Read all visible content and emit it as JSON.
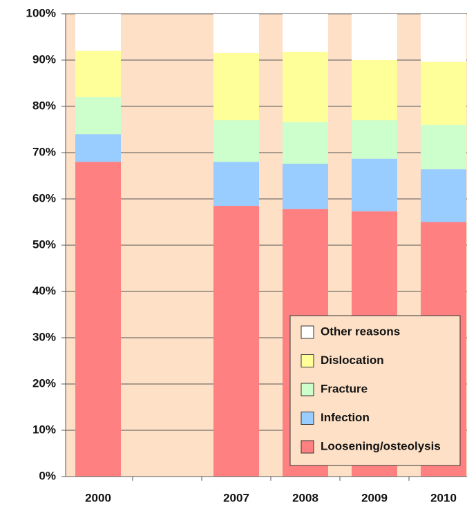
{
  "chart_data": {
    "type": "stacked_bar",
    "categories": [
      "2000",
      null,
      "2007",
      "2008",
      "2009",
      "2010"
    ],
    "series": [
      {
        "name": "Loosening/osteolysis",
        "color": "#ff8080",
        "values": [
          68,
          null,
          58.5,
          57.8,
          57.3,
          55
        ]
      },
      {
        "name": "Infection",
        "color": "#99ccff",
        "values": [
          6,
          null,
          9.5,
          9.8,
          11.4,
          11.4
        ]
      },
      {
        "name": "Fracture",
        "color": "#ccffcc",
        "values": [
          8,
          null,
          9,
          9,
          8.3,
          9.6
        ]
      },
      {
        "name": "Dislocation",
        "color": "#ffff99",
        "values": [
          10,
          null,
          14.5,
          15.2,
          13,
          13.6
        ]
      },
      {
        "name": "Other reasons",
        "color": "#ffffff",
        "values": [
          8,
          null,
          8.5,
          8.2,
          10,
          10.4
        ]
      }
    ],
    "ylim": [
      0,
      100
    ],
    "yticks": [
      {
        "value": 0,
        "label": "0%"
      },
      {
        "value": 10,
        "label": "10%"
      },
      {
        "value": 20,
        "label": "20%"
      },
      {
        "value": 30,
        "label": "30%"
      },
      {
        "value": 40,
        "label": "40%"
      },
      {
        "value": 50,
        "label": "50%"
      },
      {
        "value": 60,
        "label": "60%"
      },
      {
        "value": 70,
        "label": "70%"
      },
      {
        "value": 80,
        "label": "80%"
      },
      {
        "value": 90,
        "label": "90%"
      },
      {
        "value": 100,
        "label": "100%"
      }
    ],
    "grid": true
  }
}
